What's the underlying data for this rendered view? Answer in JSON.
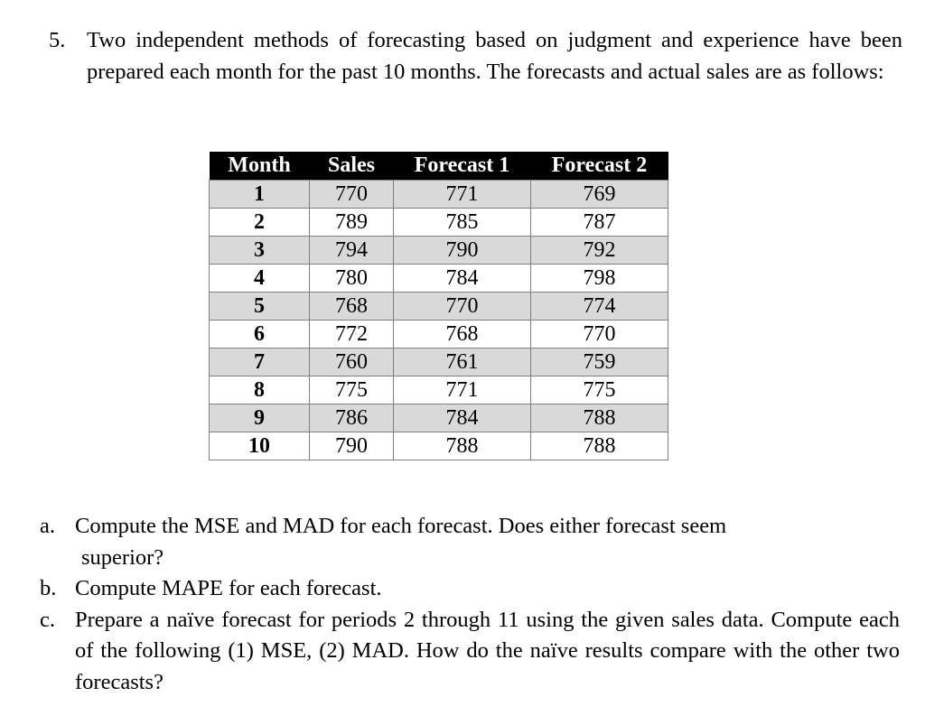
{
  "problem": {
    "number": "5.",
    "text": "Two independent methods of forecasting based on judgment and experience have been prepared each month for the past 10 months. The forecasts and actual sales are as follows:"
  },
  "table": {
    "headers": [
      "Month",
      "Sales",
      "Forecast 1",
      "Forecast 2"
    ],
    "rows": [
      [
        "1",
        "770",
        "771",
        "769"
      ],
      [
        "2",
        "789",
        "785",
        "787"
      ],
      [
        "3",
        "794",
        "790",
        "792"
      ],
      [
        "4",
        "780",
        "784",
        "798"
      ],
      [
        "5",
        "768",
        "770",
        "774"
      ],
      [
        "6",
        "772",
        "768",
        "770"
      ],
      [
        "7",
        "760",
        "761",
        "759"
      ],
      [
        "8",
        "775",
        "771",
        "775"
      ],
      [
        "9",
        "786",
        "784",
        "788"
      ],
      [
        "10",
        "790",
        "788",
        "788"
      ]
    ]
  },
  "parts": [
    {
      "letter": "a.",
      "line1": "Compute the MSE and MAD for each forecast. Does either forecast seem",
      "line2": "superior?"
    },
    {
      "letter": "b.",
      "text": "Compute MAPE for each forecast."
    },
    {
      "letter": "c.",
      "text": "Prepare a naïve forecast for periods 2 through 11 using the given sales data. Compute each of the following (1) MSE, (2) MAD. How do the naïve results compare with the other two forecasts?"
    }
  ]
}
